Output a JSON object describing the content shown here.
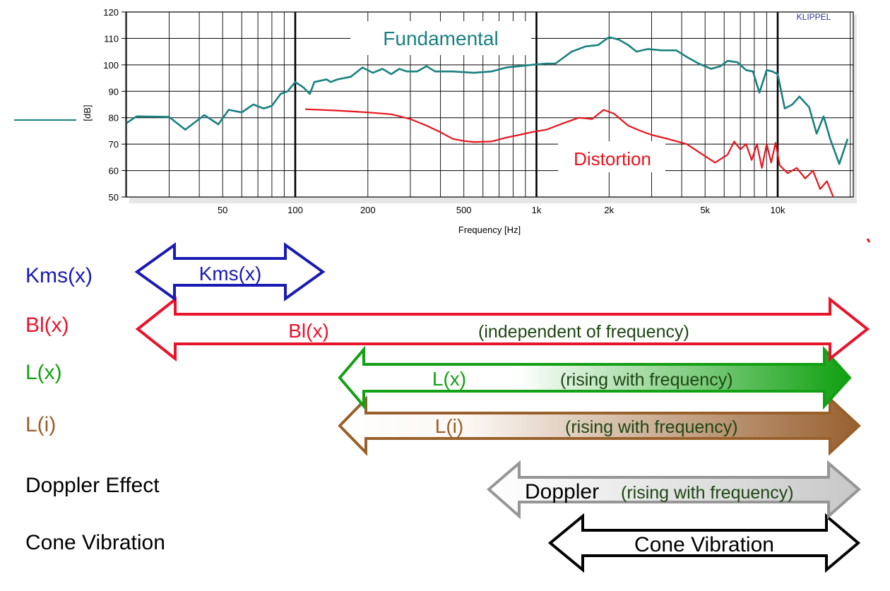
{
  "chart_data": {
    "type": "line",
    "x_scale": "log",
    "xlabel": "Frequency [Hz]",
    "ylabel": "[dB]",
    "ylim": [
      50,
      120
    ],
    "yticks": [
      50,
      60,
      70,
      80,
      90,
      100,
      110,
      120
    ],
    "xticks": [
      {
        "value": 50,
        "label": "50"
      },
      {
        "value": 100,
        "label": "100"
      },
      {
        "value": 200,
        "label": "200"
      },
      {
        "value": 500,
        "label": "500"
      },
      {
        "value": 1000,
        "label": "1k"
      },
      {
        "value": 2000,
        "label": "2k"
      },
      {
        "value": 5000,
        "label": "5k"
      },
      {
        "value": 10000,
        "label": "10k"
      }
    ],
    "grid": true,
    "watermark": "KLIPPEL",
    "series": [
      {
        "name": "Fundamental",
        "color": "#1a8080",
        "points": [
          [
            20,
            78
          ],
          [
            22,
            80.5
          ],
          [
            30,
            80.3
          ],
          [
            35,
            75.5
          ],
          [
            42,
            81
          ],
          [
            48,
            77.5
          ],
          [
            53,
            83
          ],
          [
            60,
            82
          ],
          [
            67,
            85
          ],
          [
            74,
            83.5
          ],
          [
            80,
            84.5
          ],
          [
            87,
            89
          ],
          [
            93,
            90
          ],
          [
            100,
            93.5
          ],
          [
            108,
            91.5
          ],
          [
            115,
            89
          ],
          [
            120,
            93.5
          ],
          [
            135,
            94.5
          ],
          [
            140,
            93.5
          ],
          [
            150,
            94.5
          ],
          [
            170,
            95.5
          ],
          [
            190,
            99
          ],
          [
            210,
            97
          ],
          [
            230,
            98.5
          ],
          [
            250,
            96.5
          ],
          [
            270,
            98.5
          ],
          [
            290,
            97.5
          ],
          [
            320,
            97.5
          ],
          [
            350,
            99.5
          ],
          [
            380,
            97.5
          ],
          [
            450,
            97.5
          ],
          [
            550,
            97
          ],
          [
            650,
            97.5
          ],
          [
            750,
            99
          ],
          [
            850,
            99.5
          ],
          [
            950,
            100
          ],
          [
            1100,
            100.5
          ],
          [
            1200,
            100.5
          ],
          [
            1400,
            105
          ],
          [
            1600,
            107
          ],
          [
            1800,
            107.5
          ],
          [
            2000,
            110.5
          ],
          [
            2200,
            109.5
          ],
          [
            2400,
            107.5
          ],
          [
            2600,
            105
          ],
          [
            2900,
            106
          ],
          [
            3300,
            105.5
          ],
          [
            3800,
            105.5
          ],
          [
            4200,
            103
          ],
          [
            4700,
            100.5
          ],
          [
            5300,
            98.5
          ],
          [
            5800,
            99.5
          ],
          [
            6200,
            101.5
          ],
          [
            6800,
            101
          ],
          [
            7400,
            98
          ],
          [
            7900,
            97.5
          ],
          [
            8400,
            89.5
          ],
          [
            9000,
            98
          ],
          [
            9500,
            97.5
          ],
          [
            10000,
            96.5
          ],
          [
            10700,
            83.5
          ],
          [
            11500,
            85
          ],
          [
            12300,
            88
          ],
          [
            13500,
            84
          ],
          [
            14500,
            74
          ],
          [
            15500,
            80.5
          ],
          [
            16500,
            72
          ],
          [
            18000,
            62.5
          ],
          [
            19500,
            72
          ]
        ]
      },
      {
        "name": "Distortion",
        "color": "#e8141c",
        "points": [
          [
            110,
            83.2
          ],
          [
            150,
            82.7
          ],
          [
            200,
            82
          ],
          [
            250,
            81.3
          ],
          [
            300,
            79.5
          ],
          [
            350,
            77
          ],
          [
            400,
            74.5
          ],
          [
            450,
            72
          ],
          [
            500,
            71.2
          ],
          [
            550,
            70.8
          ],
          [
            650,
            71
          ],
          [
            750,
            72.5
          ],
          [
            850,
            73.5
          ],
          [
            950,
            74.5
          ],
          [
            1100,
            75.5
          ],
          [
            1300,
            78
          ],
          [
            1500,
            80
          ],
          [
            1700,
            79.5
          ],
          [
            1900,
            83
          ],
          [
            2100,
            81.5
          ],
          [
            2400,
            77
          ],
          [
            2700,
            75
          ],
          [
            3000,
            73.5
          ],
          [
            3500,
            72
          ],
          [
            4200,
            70
          ],
          [
            4800,
            66.5
          ],
          [
            5500,
            63
          ],
          [
            6200,
            66
          ],
          [
            6600,
            71
          ],
          [
            7000,
            68
          ],
          [
            7400,
            70
          ],
          [
            7800,
            64
          ],
          [
            8200,
            70
          ],
          [
            8600,
            61
          ],
          [
            9000,
            70
          ],
          [
            9400,
            63
          ],
          [
            9800,
            70.5
          ],
          [
            10200,
            62
          ],
          [
            11000,
            59
          ],
          [
            12000,
            61
          ],
          [
            13000,
            57
          ],
          [
            14000,
            60
          ],
          [
            15000,
            53
          ],
          [
            16000,
            56
          ],
          [
            17000,
            50
          ]
        ]
      }
    ],
    "annotations": [
      "Fundamental",
      "Distortion"
    ]
  },
  "ranges": [
    {
      "key": "kms",
      "row_label": "Kms(x)",
      "arrow_text": "Kms(x)",
      "note": "",
      "color": "#1a1ab4",
      "fill": "none"
    },
    {
      "key": "bl",
      "row_label": "Bl(x)",
      "arrow_text": "Bl(x)",
      "note": "(independent of frequency)",
      "color": "#e8142c",
      "fill": "none"
    },
    {
      "key": "lx",
      "row_label": "L(x)",
      "arrow_text": "L(x)",
      "note": "(rising with frequency)",
      "color": "#14a014",
      "fill": "gradient"
    },
    {
      "key": "li",
      "row_label": "L(i)",
      "arrow_text": "L(i)",
      "note": "(rising with frequency)",
      "color": "#98602a",
      "fill": "gradient"
    },
    {
      "key": "doppler",
      "row_label": "Doppler Effect",
      "arrow_text": "Doppler",
      "note": "(rising with frequency)",
      "color": "#969696",
      "fill": "gradient"
    },
    {
      "key": "cone",
      "row_label": "Cone Vibration",
      "arrow_text": "Cone Vibration",
      "note": "",
      "color": "#000000",
      "fill": "none"
    }
  ],
  "colors": {
    "note_text": "#1e4614",
    "row_label_black": "#000000"
  }
}
